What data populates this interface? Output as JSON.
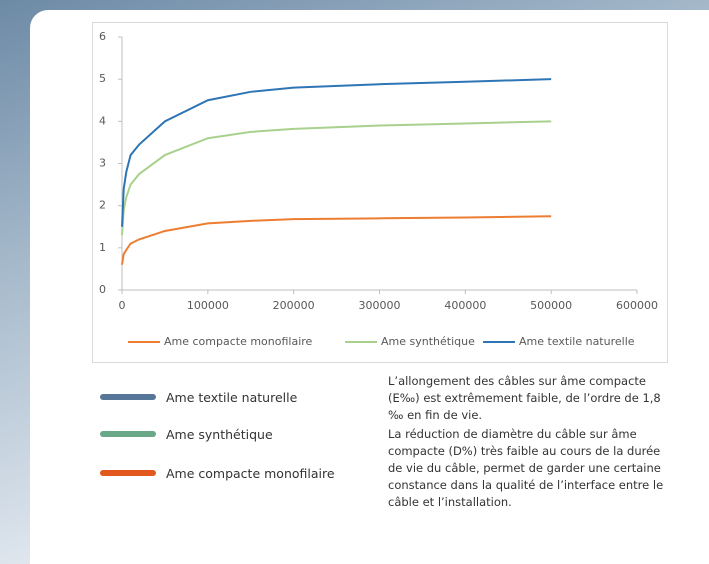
{
  "chart_data": {
    "type": "line",
    "x": [
      0,
      2000,
      5000,
      10000,
      20000,
      50000,
      100000,
      150000,
      200000,
      300000,
      400000,
      500000
    ],
    "series": [
      {
        "name": "Ame compacte monofilaire",
        "color": "#ed7d31",
        "values": [
          0.6,
          0.85,
          0.95,
          1.1,
          1.2,
          1.4,
          1.58,
          1.64,
          1.68,
          1.7,
          1.72,
          1.75
        ]
      },
      {
        "name": "Ame synthétique",
        "color": "#a9d18e",
        "values": [
          1.3,
          1.9,
          2.2,
          2.5,
          2.75,
          3.2,
          3.6,
          3.75,
          3.82,
          3.9,
          3.95,
          4.0
        ]
      },
      {
        "name": "Ame textile naturelle",
        "color": "#2e75b6",
        "values": [
          1.5,
          2.4,
          2.8,
          3.2,
          3.45,
          4.0,
          4.5,
          4.7,
          4.8,
          4.88,
          4.94,
          5.0
        ]
      }
    ],
    "xlim": [
      0,
      600000
    ],
    "xticks": [
      0,
      100000,
      200000,
      300000,
      400000,
      500000,
      600000
    ],
    "ylim": [
      0,
      6
    ],
    "yticks": [
      0,
      1,
      2,
      3,
      4,
      5,
      6
    ],
    "grid": false,
    "legend": "bottom"
  },
  "key": [
    {
      "label": "Ame textile naturelle",
      "color": "#56779a"
    },
    {
      "label": "Ame synthétique",
      "color": "#6aa88a"
    },
    {
      "label": "Ame compacte monofilaire",
      "color": "#e2581f"
    }
  ],
  "description": [
    "L’allongement des câbles sur âme compacte (E‰) est extrêmement faible, de l’ordre de 1,8 ‰ en fin de vie.",
    "La réduction de diamètre du câble sur âme compacte (D%) très faible au cours de la durée de vie du câble, permet de garder une certaine constance dans la qualité de l’interface entre le câble et l’installation."
  ]
}
